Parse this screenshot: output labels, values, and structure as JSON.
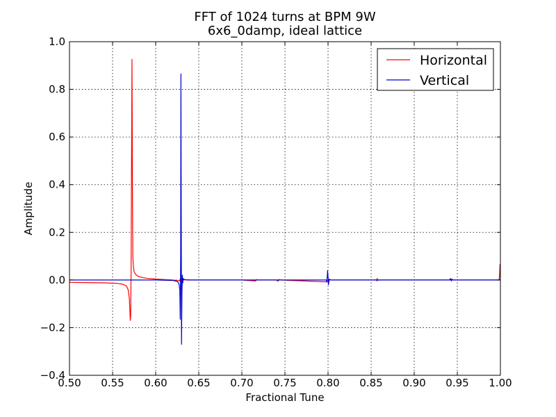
{
  "chart_data": {
    "type": "line",
    "title": "FFT of 1024 turns at BPM 9W",
    "subtitle": "6x6_0damp, ideal lattice",
    "xlabel": "Fractional Tune",
    "ylabel": "Amplitude",
    "xlim": [
      0.5,
      1.0
    ],
    "ylim": [
      -0.4,
      1.0
    ],
    "xticks": [
      "0.50",
      "0.55",
      "0.60",
      "0.65",
      "0.70",
      "0.75",
      "0.80",
      "0.85",
      "0.90",
      "0.95",
      "1.00"
    ],
    "yticks": [
      "−0.4",
      "−0.2",
      "0.0",
      "0.2",
      "0.4",
      "0.6",
      "0.8",
      "1.0"
    ],
    "grid": true,
    "legend_position": "top-right",
    "series": [
      {
        "name": "Horizontal",
        "color": "#ff0000",
        "x": [
          0.5,
          0.52,
          0.54,
          0.555,
          0.562,
          0.566,
          0.568,
          0.5695,
          0.5705,
          0.571,
          0.5715,
          0.572,
          0.5725,
          0.573,
          0.5735,
          0.574,
          0.575,
          0.577,
          0.58,
          0.585,
          0.59,
          0.6,
          0.61,
          0.62,
          0.628,
          0.6295,
          0.63,
          0.6305,
          0.631,
          0.632,
          0.64,
          0.7,
          0.716,
          0.717,
          0.718,
          0.74,
          0.742,
          0.743,
          0.745,
          0.799,
          0.8,
          0.801,
          0.8025,
          0.856,
          0.857,
          0.858,
          0.9,
          0.942,
          0.943,
          0.944,
          0.99,
          0.9985,
          0.999,
          0.9995,
          1.0
        ],
        "y": [
          -0.01,
          -0.011,
          -0.012,
          -0.014,
          -0.018,
          -0.025,
          -0.04,
          -0.08,
          -0.17,
          -0.15,
          0.05,
          0.5,
          0.926,
          0.4,
          0.1,
          0.06,
          0.035,
          0.022,
          0.015,
          0.01,
          0.007,
          0.004,
          0.002,
          0.0,
          -0.004,
          0.012,
          -0.005,
          0.004,
          0.0,
          0.001,
          0.0,
          0.0,
          -0.004,
          0.002,
          0.0,
          0.0,
          -0.005,
          0.002,
          0.0,
          -0.008,
          0.0,
          0.004,
          0.0,
          0.0,
          0.006,
          0.0,
          0.0,
          0.0,
          0.004,
          0.0,
          0.0,
          0.0,
          0.02,
          0.065,
          0.0
        ]
      },
      {
        "name": "Vertical",
        "color": "#0000cc",
        "x": [
          0.5,
          0.55,
          0.6,
          0.62,
          0.625,
          0.627,
          0.628,
          0.6285,
          0.629,
          0.6293,
          0.6297,
          0.63,
          0.6305,
          0.631,
          0.6315,
          0.632,
          0.633,
          0.635,
          0.64,
          0.7,
          0.798,
          0.7985,
          0.799,
          0.7995,
          0.8,
          0.8005,
          0.801,
          0.8015,
          0.803,
          0.856,
          0.857,
          0.858,
          0.941,
          0.942,
          0.943,
          0.944,
          0.945,
          1.0
        ],
        "y": [
          0.0,
          0.0,
          0.0,
          -0.002,
          -0.006,
          -0.015,
          -0.04,
          -0.165,
          0.1,
          0.865,
          0.2,
          -0.27,
          -0.05,
          0.02,
          -0.012,
          0.006,
          0.002,
          0.001,
          0.0,
          0.0,
          0.0,
          -0.008,
          0.01,
          0.04,
          0.015,
          -0.02,
          -0.006,
          0.003,
          0.0,
          0.0,
          -0.003,
          0.0,
          0.0,
          0.006,
          -0.004,
          0.003,
          0.0,
          0.0
        ]
      }
    ]
  }
}
